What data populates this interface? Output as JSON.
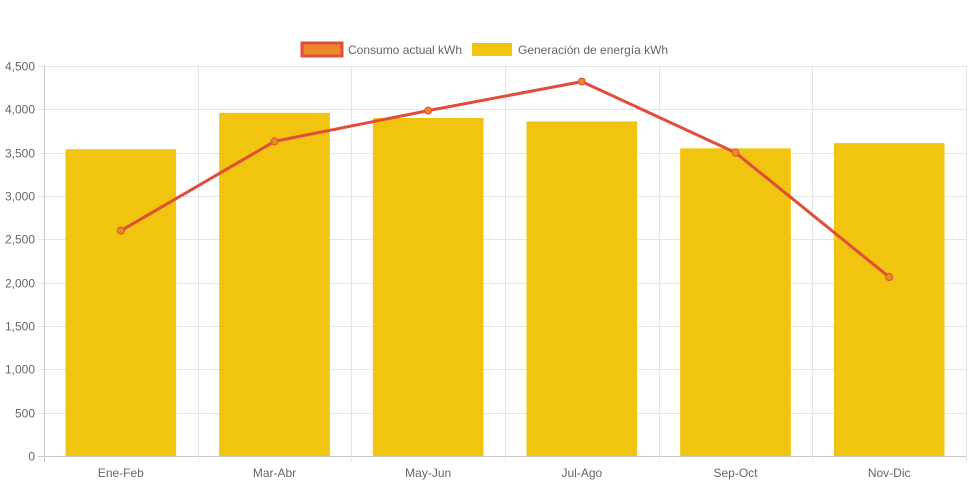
{
  "chart_data": {
    "type": "bar",
    "categories": [
      "Ene-Feb",
      "Mar-Abr",
      "May-Jun",
      "Jul-Ago",
      "Sep-Oct",
      "Nov-Dic"
    ],
    "series": [
      {
        "name": "Consumo actual kWh",
        "type": "line",
        "color": "#e04e39",
        "legend_fill": "#e8892a",
        "values": [
          2600,
          3630,
          3985,
          4320,
          3500,
          2065
        ]
      },
      {
        "name": "Generación de energía kWh",
        "type": "bar",
        "color": "#f1c40f",
        "values": [
          3540,
          3960,
          3900,
          3860,
          3550,
          3610
        ]
      }
    ],
    "ylim": [
      0,
      4500
    ],
    "y_ticks": [
      0,
      500,
      1000,
      1500,
      2000,
      2500,
      3000,
      3500,
      4000,
      4500
    ],
    "y_tick_labels": [
      "0",
      "500",
      "1,000",
      "1,500",
      "2,000",
      "2,500",
      "3,000",
      "3,500",
      "4,000",
      "4,500"
    ],
    "grid": true,
    "legend_position": "top-center"
  }
}
